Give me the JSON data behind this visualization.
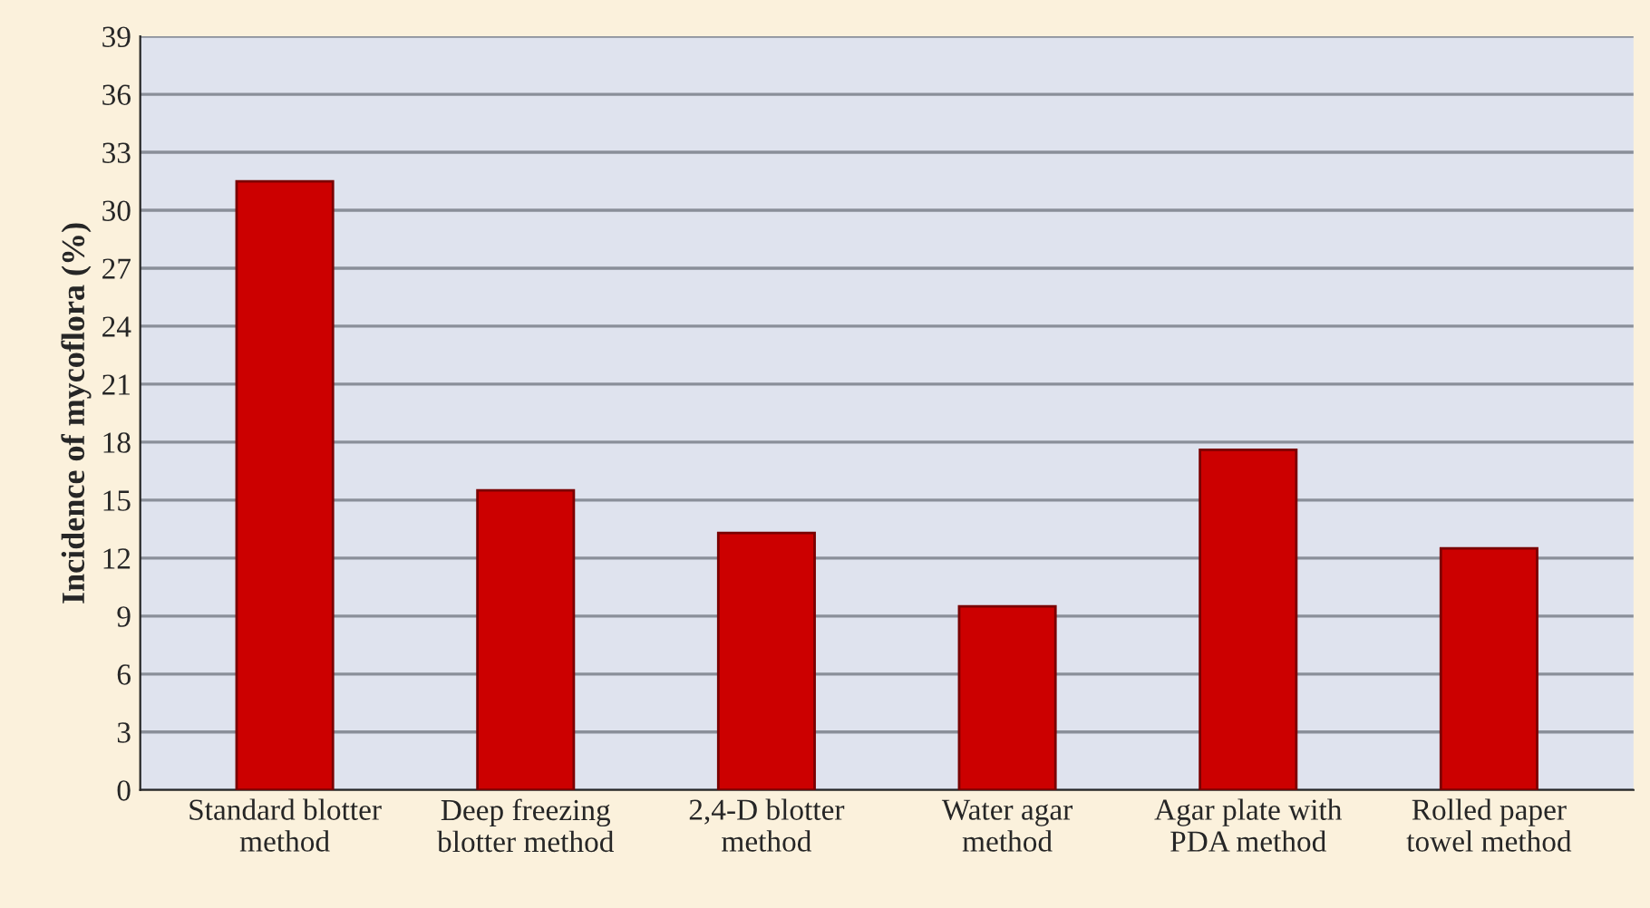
{
  "chart_data": {
    "type": "bar",
    "ylabel": "Incidence of mycoflora (%)",
    "categories": [
      "Standard blotter\nmethod",
      "Deep freezing\nblotter method",
      "2,4-D blotter\nmethod",
      "Water agar\nmethod",
      "Agar plate with\nPDA method",
      "Rolled paper\ntowel method"
    ],
    "values": [
      31.5,
      15.5,
      13.3,
      9.5,
      17.6,
      12.5
    ],
    "color": "#cc0000",
    "ylim": [
      0,
      39
    ],
    "yticks": [
      0,
      3,
      6,
      9,
      12,
      15,
      18,
      21,
      24,
      27,
      30,
      33,
      36,
      39
    ],
    "grid": "y"
  }
}
